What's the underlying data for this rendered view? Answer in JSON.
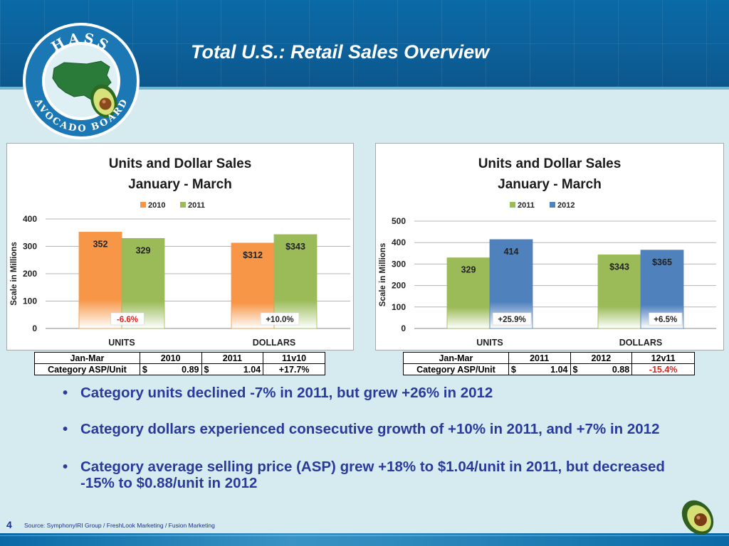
{
  "slide": {
    "title": "Total U.S.: Retail Sales Overview",
    "logo_text_top": "HASS",
    "logo_text_bottom": "AVOCADO BOARD",
    "page_number": "4",
    "source": "Source: SymphonyIRI Group / FreshLook Marketing / Fusion Marketing"
  },
  "colors": {
    "header_blue": "#0d5f98",
    "background": "#d6ebef",
    "bullet_text": "#2a3a9c",
    "series_2010": "#f79646",
    "series_2011": "#9bbb59",
    "series_2012": "#4f81bd",
    "negative_text": "#e0201b"
  },
  "chart_data": [
    {
      "type": "bar",
      "title": "Units and Dollar Sales",
      "subtitle": "January - March",
      "ylabel": "Scale in Millions",
      "xlabel": "",
      "categories": [
        "UNITS",
        "DOLLARS"
      ],
      "series": [
        {
          "name": "2010",
          "values": [
            352,
            312
          ],
          "labels": [
            "352",
            "$312"
          ]
        },
        {
          "name": "2011",
          "values": [
            329,
            343
          ],
          "labels": [
            "329",
            "$343"
          ]
        }
      ],
      "change_labels": [
        "-6.6%",
        "+10.0%"
      ],
      "ylim": [
        0,
        400
      ],
      "yticks": [
        0,
        100,
        200,
        300,
        400
      ],
      "grid": true,
      "legend": "top"
    },
    {
      "type": "bar",
      "title": "Units and Dollar Sales",
      "subtitle": "January - March",
      "ylabel": "Scale in Millions",
      "xlabel": "",
      "categories": [
        "UNITS",
        "DOLLARS"
      ],
      "series": [
        {
          "name": "2011",
          "values": [
            329,
            343
          ],
          "labels": [
            "329",
            "$343"
          ]
        },
        {
          "name": "2012",
          "values": [
            414,
            365
          ],
          "labels": [
            "414",
            "$365"
          ]
        }
      ],
      "change_labels": [
        "+25.9%",
        "+6.5%"
      ],
      "ylim": [
        0,
        500
      ],
      "yticks": [
        0,
        100,
        200,
        300,
        400,
        500
      ],
      "grid": true,
      "legend": "top"
    }
  ],
  "asp_tables": [
    {
      "header": [
        "Jan-Mar",
        "2010",
        "2011",
        "11v10"
      ],
      "row_label": "Category ASP/Unit",
      "values": [
        {
          "cur": "$",
          "amt": "0.89"
        },
        {
          "cur": "$",
          "amt": "1.04"
        }
      ],
      "change": "+17.7%"
    },
    {
      "header": [
        "Jan-Mar",
        "2011",
        "2012",
        "12v11"
      ],
      "row_label": "Category ASP/Unit",
      "values": [
        {
          "cur": "$",
          "amt": "1.04"
        },
        {
          "cur": "$",
          "amt": "0.88"
        }
      ],
      "change": "-15.4%"
    }
  ],
  "bullets": [
    "Category units declined -7% in 2011, but grew +26% in 2012",
    "Category dollars experienced consecutive growth of +10% in 2011, and +7% in 2012",
    "Category average selling price (ASP) grew +18% to $1.04/unit in 2011, but decreased -15% to $0.88/unit in 2012"
  ]
}
